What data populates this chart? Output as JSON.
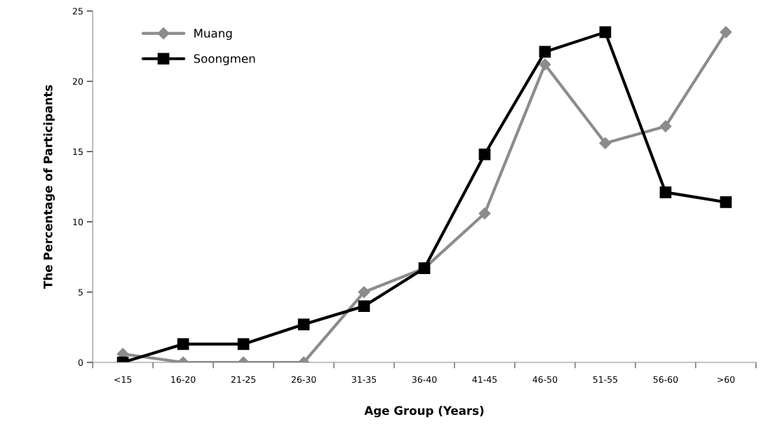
{
  "chart_data": {
    "type": "line",
    "xlabel": "Age Group (Years)",
    "ylabel": "The Percentage of Participants",
    "categories": [
      "<15",
      "16-20",
      "21-25",
      "26-30",
      "31-35",
      "36-40",
      "41-45",
      "46-50",
      "51-55",
      "56-60",
      ">60"
    ],
    "series": [
      {
        "name": "Muang",
        "color": "#8c8c8c",
        "marker": "diamond",
        "values": [
          0.6,
          0,
          0,
          0,
          5.0,
          6.7,
          10.6,
          21.2,
          15.6,
          16.8,
          23.5
        ]
      },
      {
        "name": "Soongmen",
        "color": "#000000",
        "marker": "square",
        "values": [
          0,
          1.3,
          1.3,
          2.7,
          4.0,
          6.7,
          14.8,
          22.1,
          23.5,
          12.1,
          11.4
        ]
      }
    ],
    "ylim": [
      0,
      25
    ],
    "yticks": [
      0,
      5,
      10,
      15,
      20,
      25
    ],
    "grid": false,
    "legend": "top left",
    "line_style": "solid"
  }
}
